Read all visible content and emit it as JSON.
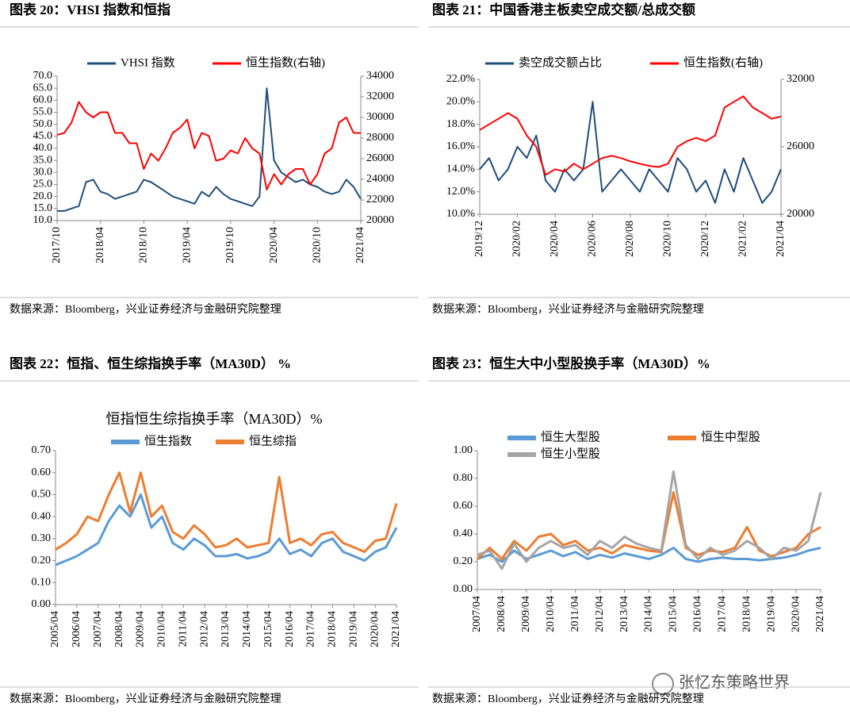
{
  "watermark": "张忆东策略世界",
  "chart_data": [
    {
      "type": "line",
      "title": "图表 20：VHSI 指数和恒指",
      "source": "数据来源：Bloomberg，兴业证券经济与金融研究院整理",
      "legend": "top",
      "categories": [
        "2017/10",
        null,
        null,
        null,
        null,
        null,
        "2018/04",
        null,
        null,
        null,
        null,
        null,
        "2018/10",
        null,
        null,
        null,
        null,
        null,
        "2019/04",
        null,
        null,
        null,
        null,
        null,
        "2019/10",
        null,
        null,
        null,
        null,
        null,
        "2020/04",
        null,
        null,
        null,
        null,
        null,
        "2020/10",
        null,
        null,
        null,
        null,
        null,
        "2021/04"
      ],
      "series": [
        {
          "name": "VHSI 指数",
          "color": "#1f4e79",
          "values": [
            14,
            14,
            15,
            16,
            26,
            27,
            22,
            21,
            19,
            20,
            21,
            22,
            27,
            26,
            24,
            22,
            20,
            19,
            18,
            17,
            22,
            20,
            24,
            21,
            19,
            18,
            17,
            16,
            20,
            65,
            35,
            30,
            28,
            26,
            27,
            25,
            24,
            22,
            21,
            22,
            27,
            24,
            19
          ]
        },
        {
          "name": "恒生指数(右轴)",
          "color": "#ff0000",
          "axis": "y2",
          "values": [
            28300,
            28500,
            29500,
            31500,
            30500,
            30000,
            30500,
            30500,
            28500,
            28500,
            27500,
            27500,
            25000,
            26500,
            25800,
            27000,
            28500,
            29000,
            29800,
            27000,
            28500,
            28200,
            25800,
            26000,
            26800,
            26500,
            28000,
            27000,
            26500,
            23000,
            24500,
            23500,
            24500,
            25000,
            25000,
            23500,
            24500,
            26500,
            27000,
            29500,
            30000,
            28500,
            28500
          ]
        }
      ],
      "ylim": [
        10,
        70
      ],
      "yticks": [
        {
          "value": 10,
          "label": "10.0"
        },
        {
          "value": 15,
          "label": "15.0"
        },
        {
          "value": 20,
          "label": "20.0"
        },
        {
          "value": 25,
          "label": "25.0"
        },
        {
          "value": 30,
          "label": "30.0"
        },
        {
          "value": 35,
          "label": "35.0"
        },
        {
          "value": 40,
          "label": "40.0"
        },
        {
          "value": 45,
          "label": "45.0"
        },
        {
          "value": 50,
          "label": "50.0"
        },
        {
          "value": 55,
          "label": "55.0"
        },
        {
          "value": 60,
          "label": "60.0"
        },
        {
          "value": 65,
          "label": "65.0"
        },
        {
          "value": 70,
          "label": "70.0"
        }
      ],
      "y2lim": [
        20000,
        34000
      ],
      "y2ticks": [
        20000,
        22000,
        24000,
        26000,
        28000,
        30000,
        32000,
        34000
      ]
    },
    {
      "type": "line",
      "title": "图表 21：中国香港主板卖空成交额/总成交额",
      "source": "数据来源：Bloomberg，兴业证券经济与金融研究院整理",
      "legend": "top",
      "categories": [
        "2019/12",
        null,
        null,
        null,
        "2020/02",
        null,
        null,
        null,
        "2020/04",
        null,
        null,
        null,
        "2020/06",
        null,
        null,
        null,
        "2020/08",
        null,
        null,
        null,
        "2020/10",
        null,
        null,
        null,
        "2020/12",
        null,
        null,
        null,
        "2021/02",
        null,
        null,
        null,
        "2021/04"
      ],
      "series": [
        {
          "name": "卖空成交额占比",
          "color": "#1f4e79",
          "values": [
            14,
            15,
            13,
            14,
            16,
            15,
            17,
            13,
            12,
            14,
            13,
            14,
            20,
            12,
            13,
            14,
            13,
            12,
            14,
            13,
            12,
            15,
            14,
            12,
            13,
            11,
            14,
            12,
            15,
            13,
            11,
            12,
            14
          ]
        },
        {
          "name": "恒生指数(右轴)",
          "color": "#ff0000",
          "axis": "y2",
          "values": [
            27500,
            28000,
            28500,
            29000,
            28500,
            27000,
            26000,
            23500,
            24000,
            23800,
            24500,
            24000,
            24500,
            25000,
            25200,
            25000,
            24700,
            24500,
            24300,
            24200,
            24500,
            26000,
            26500,
            26800,
            26500,
            27000,
            29500,
            30000,
            30500,
            29500,
            29000,
            28500,
            28700
          ]
        }
      ],
      "ylim": [
        10,
        22
      ],
      "yticks": [
        {
          "value": 10,
          "label": "10.0%"
        },
        {
          "value": 12,
          "label": "12.0%"
        },
        {
          "value": 14,
          "label": "14.0%"
        },
        {
          "value": 16,
          "label": "16.0%"
        },
        {
          "value": 18,
          "label": "18.0%"
        },
        {
          "value": 20,
          "label": "20.0%"
        },
        {
          "value": 22,
          "label": "22.0%"
        }
      ],
      "y2lim": [
        20000,
        32000
      ],
      "y2ticks": [
        20000,
        26000,
        32000
      ]
    },
    {
      "type": "line",
      "title": "图表 22：恒指、恒生综指换手率（MA30D） %",
      "subtitle": "恒指恒生综指换手率（MA30D）%",
      "source": "数据来源：Bloomberg，兴业证券经济与金融研究院整理",
      "legend": "top",
      "categories": [
        "2005/04",
        null,
        "2006/04",
        null,
        "2007/04",
        null,
        "2008/04",
        null,
        "2009/04",
        null,
        "2010/04",
        null,
        "2011/04",
        null,
        "2012/04",
        null,
        "2013/04",
        null,
        "2014/04",
        null,
        "2015/04",
        null,
        "2016/04",
        null,
        "2017/04",
        null,
        "2018/04",
        null,
        "2019/04",
        null,
        "2020/04",
        null,
        "2021/04"
      ],
      "series": [
        {
          "name": "恒生指数",
          "color": "#5b9bd5",
          "values": [
            0.18,
            0.2,
            0.22,
            0.25,
            0.28,
            0.38,
            0.45,
            0.4,
            0.5,
            0.35,
            0.4,
            0.28,
            0.25,
            0.3,
            0.27,
            0.22,
            0.22,
            0.23,
            0.21,
            0.22,
            0.24,
            0.3,
            0.23,
            0.25,
            0.22,
            0.28,
            0.3,
            0.24,
            0.22,
            0.2,
            0.24,
            0.26,
            0.35
          ]
        },
        {
          "name": "恒生综指",
          "color": "#ed7d31",
          "values": [
            0.25,
            0.28,
            0.32,
            0.4,
            0.38,
            0.5,
            0.6,
            0.42,
            0.6,
            0.4,
            0.45,
            0.33,
            0.3,
            0.36,
            0.32,
            0.26,
            0.27,
            0.3,
            0.26,
            0.27,
            0.28,
            0.58,
            0.28,
            0.3,
            0.27,
            0.32,
            0.33,
            0.28,
            0.26,
            0.24,
            0.29,
            0.3,
            0.46
          ]
        }
      ],
      "ylim": [
        0,
        0.7
      ],
      "yticks": [
        {
          "value": 0,
          "label": "0.00"
        },
        {
          "value": 0.1,
          "label": "0.10"
        },
        {
          "value": 0.2,
          "label": "0.20"
        },
        {
          "value": 0.3,
          "label": "0.30"
        },
        {
          "value": 0.4,
          "label": "0.40"
        },
        {
          "value": 0.5,
          "label": "0.50"
        },
        {
          "value": 0.6,
          "label": "0.60"
        },
        {
          "value": 0.7,
          "label": "0.70"
        }
      ]
    },
    {
      "type": "line",
      "title": "图表 23：恒生大中小型股换手率（MA30D）%",
      "source": "数据来源：Bloomberg，兴业证券经济与金融研究院整理",
      "legend": "top",
      "categories": [
        "2007/04",
        null,
        "2008/04",
        null,
        "2009/04",
        null,
        "2010/04",
        null,
        "2011/04",
        null,
        "2012/04",
        null,
        "2013/04",
        null,
        "2014/04",
        null,
        "2015/04",
        null,
        "2016/04",
        null,
        "2017/04",
        null,
        "2018/04",
        null,
        "2019/04",
        null,
        "2020/04",
        null,
        "2021/04"
      ],
      "series": [
        {
          "name": "恒生大型股",
          "color": "#5b9bd5",
          "values": [
            0.22,
            0.25,
            0.2,
            0.28,
            0.22,
            0.25,
            0.28,
            0.24,
            0.27,
            0.22,
            0.25,
            0.23,
            0.26,
            0.24,
            0.22,
            0.25,
            0.3,
            0.22,
            0.2,
            0.22,
            0.23,
            0.22,
            0.22,
            0.21,
            0.22,
            0.23,
            0.25,
            0.28,
            0.3
          ]
        },
        {
          "name": "恒生中型股",
          "color": "#ed7d31",
          "values": [
            0.22,
            0.3,
            0.22,
            0.35,
            0.28,
            0.38,
            0.4,
            0.32,
            0.35,
            0.28,
            0.3,
            0.26,
            0.32,
            0.3,
            0.28,
            0.27,
            0.7,
            0.3,
            0.25,
            0.28,
            0.27,
            0.3,
            0.45,
            0.28,
            0.24,
            0.27,
            0.3,
            0.4,
            0.45
          ]
        },
        {
          "name": "恒生小型股",
          "color": "#a5a5a5",
          "values": [
            0.25,
            0.28,
            0.15,
            0.33,
            0.2,
            0.3,
            0.35,
            0.3,
            0.32,
            0.25,
            0.35,
            0.3,
            0.38,
            0.33,
            0.3,
            0.28,
            0.85,
            0.32,
            0.22,
            0.3,
            0.25,
            0.28,
            0.35,
            0.3,
            0.22,
            0.3,
            0.28,
            0.35,
            0.7
          ]
        }
      ],
      "ylim": [
        0,
        1
      ],
      "yticks": [
        {
          "value": 0,
          "label": "0.00"
        },
        {
          "value": 0.2,
          "label": "0.20"
        },
        {
          "value": 0.4,
          "label": "0.40"
        },
        {
          "value": 0.6,
          "label": "0.60"
        },
        {
          "value": 0.8,
          "label": "0.80"
        },
        {
          "value": 1,
          "label": "1.00"
        }
      ]
    }
  ]
}
